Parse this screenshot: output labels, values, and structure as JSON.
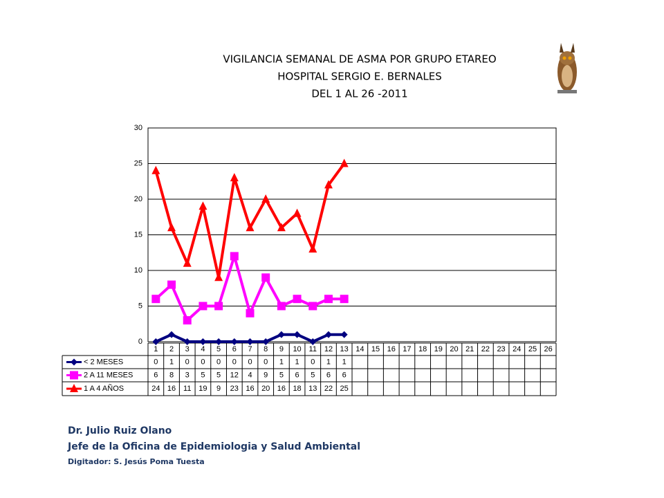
{
  "title_lines": [
    "VIGILANCIA SEMANAL DE ASMA POR GRUPO ETAREO",
    "HOSPITAL SERGIO E. BERNALES",
    "DEL 1 AL 26 -2011"
  ],
  "chart_data": {
    "type": "line",
    "categories": [
      "1",
      "2",
      "3",
      "4",
      "5",
      "6",
      "7",
      "8",
      "9",
      "10",
      "11",
      "12",
      "13",
      "14",
      "15",
      "16",
      "17",
      "18",
      "19",
      "20",
      "21",
      "22",
      "23",
      "24",
      "25",
      "26"
    ],
    "series": [
      {
        "name": "< 2 MESES",
        "color": "#000080",
        "marker": "diamond",
        "values": [
          0,
          1,
          0,
          0,
          0,
          0,
          0,
          0,
          1,
          1,
          0,
          1,
          1,
          null,
          null,
          null,
          null,
          null,
          null,
          null,
          null,
          null,
          null,
          null,
          null,
          null
        ]
      },
      {
        "name": "2 A 11 MESES",
        "color": "#ff00ff",
        "marker": "square",
        "values": [
          6,
          8,
          3,
          5,
          5,
          12,
          4,
          9,
          5,
          6,
          5,
          6,
          6,
          null,
          null,
          null,
          null,
          null,
          null,
          null,
          null,
          null,
          null,
          null,
          null,
          null
        ]
      },
      {
        "name": "1 A 4 AÑOS",
        "color": "#ff0000",
        "marker": "triangle",
        "values": [
          24,
          16,
          11,
          19,
          9,
          23,
          16,
          20,
          16,
          18,
          13,
          22,
          25,
          null,
          null,
          null,
          null,
          null,
          null,
          null,
          null,
          null,
          null,
          null,
          null,
          null
        ]
      }
    ],
    "ylim": [
      0,
      30
    ],
    "yticks": [
      0,
      5,
      10,
      15,
      20,
      25,
      30
    ],
    "grid": true
  },
  "footer": {
    "author": "Dr.  Julio Ruiz Olano",
    "role": "Jefe de la Oficina de Epidemiologia y  Salud Ambiental",
    "digitizer": "Digitador: S. Jesús Poma Tuesta"
  }
}
